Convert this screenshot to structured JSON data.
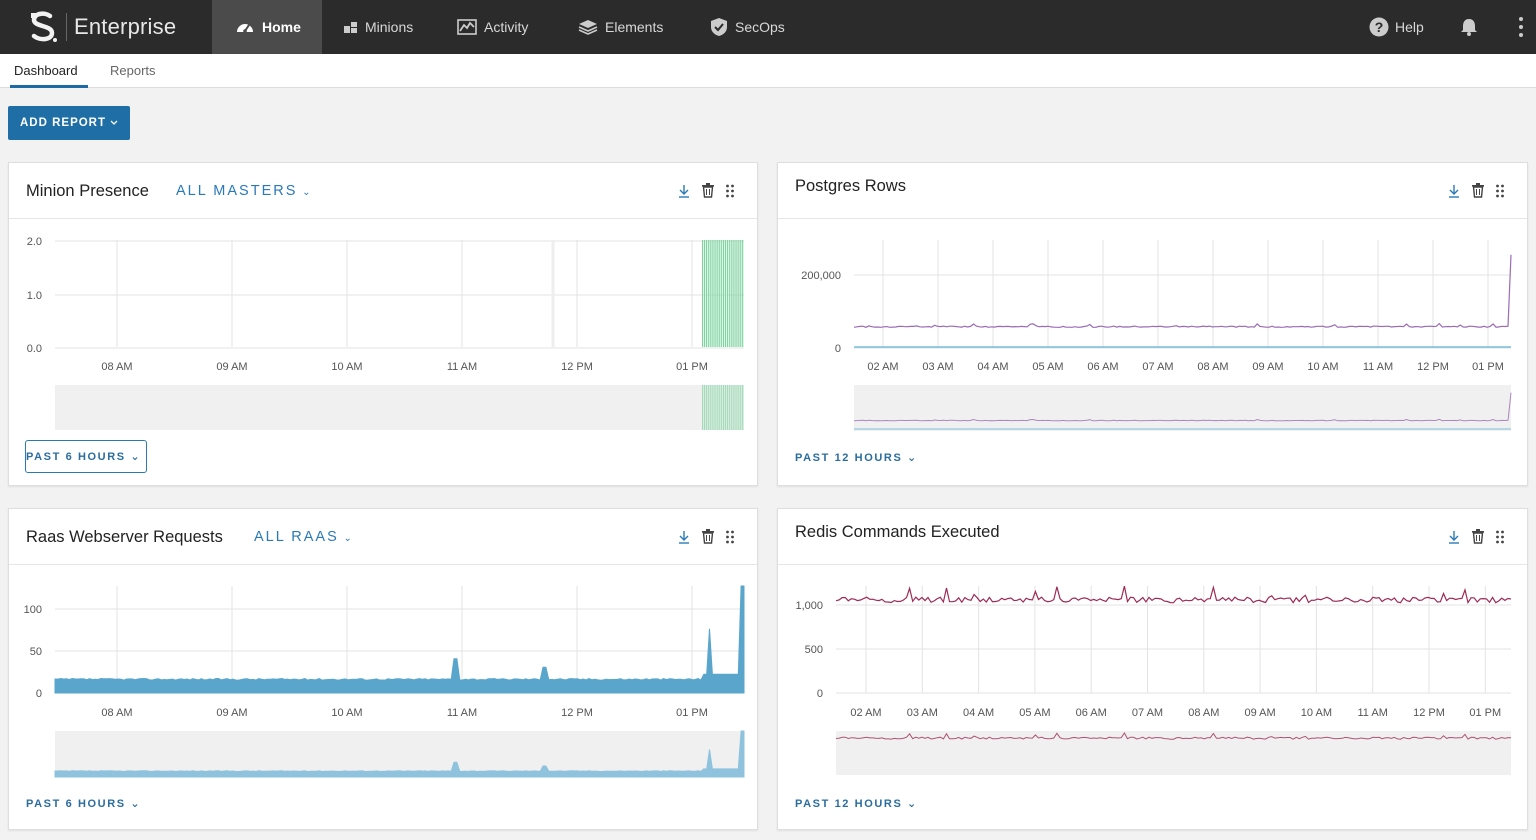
{
  "brand": {
    "name": "Enterprise"
  },
  "nav": {
    "items": [
      {
        "label": "Home",
        "icon": "dashboard-gauge-icon",
        "active": true
      },
      {
        "label": "Minions",
        "icon": "minions-blocks-icon"
      },
      {
        "label": "Activity",
        "icon": "activity-chart-icon"
      },
      {
        "label": "Elements",
        "icon": "layers-icon"
      },
      {
        "label": "SecOps",
        "icon": "shield-check-icon"
      }
    ],
    "help_label": "Help"
  },
  "subtabs": [
    "Dashboard",
    "Reports"
  ],
  "add_report_label": "ADD REPORT",
  "cards": [
    {
      "title": "Minion Presence",
      "filter": "ALL MASTERS",
      "range": "PAST 6 HOURS",
      "chart_data": {
        "type": "bar",
        "x_ticks": [
          "08 AM",
          "09 AM",
          "10 AM",
          "11 AM",
          "12 PM",
          "01 PM"
        ],
        "y_ticks": [
          "2.0",
          "1.0",
          "0.0"
        ],
        "ylim": [
          0,
          2
        ],
        "series": [
          {
            "color": "#7ed3a0",
            "values": [
              2,
              2,
              2,
              2,
              2,
              2,
              2,
              2,
              2,
              2,
              2,
              2,
              2,
              2,
              2,
              2,
              2,
              2,
              2,
              2,
              2,
              2
            ]
          }
        ],
        "x_start": "01:10 PM",
        "x_end": "01:30 PM",
        "grid": true
      }
    },
    {
      "title": "Postgres Rows",
      "range": "PAST 12 HOURS",
      "chart_data": {
        "type": "line",
        "x_ticks": [
          "02 AM",
          "03 AM",
          "04 AM",
          "05 AM",
          "06 AM",
          "07 AM",
          "08 AM",
          "09 AM",
          "10 AM",
          "11 AM",
          "12 PM",
          "01 PM"
        ],
        "y_ticks": [
          "200,000",
          "0"
        ],
        "ylim": [
          0,
          290000
        ],
        "series": [
          {
            "color": "#9b6bb5",
            "typical": 55000,
            "last": 250000
          },
          {
            "color": "#5fb3d6",
            "typical": 0
          }
        ],
        "grid": true
      }
    },
    {
      "title": "Raas Webserver Requests",
      "filter": "ALL RAAS",
      "range": "PAST 6 HOURS",
      "chart_data": {
        "type": "area",
        "x_ticks": [
          "08 AM",
          "09 AM",
          "10 AM",
          "11 AM",
          "12 PM",
          "01 PM"
        ],
        "y_ticks": [
          "100",
          "50",
          "0"
        ],
        "ylim": [
          0,
          125
        ],
        "series": [
          {
            "color": "#5aa5cc",
            "typical": 16,
            "peaks": [
              {
                "at": 0.58,
                "v": 40
              },
              {
                "at": 0.71,
                "v": 30
              },
              {
                "at": 0.95,
                "v": 75
              },
              {
                "at": 0.999,
                "v": 125
              }
            ]
          }
        ],
        "grid": true
      }
    },
    {
      "title": "Redis Commands Executed",
      "range": "PAST 12 HOURS",
      "chart_data": {
        "type": "line",
        "x_ticks": [
          "02 AM",
          "03 AM",
          "04 AM",
          "05 AM",
          "06 AM",
          "07 AM",
          "08 AM",
          "09 AM",
          "10 AM",
          "11 AM",
          "12 PM",
          "01 PM"
        ],
        "y_ticks": [
          "1,000",
          "500",
          "0"
        ],
        "ylim": [
          0,
          1150
        ],
        "series": [
          {
            "color": "#9e2a55",
            "typical": 1000
          }
        ],
        "grid": true
      }
    }
  ]
}
